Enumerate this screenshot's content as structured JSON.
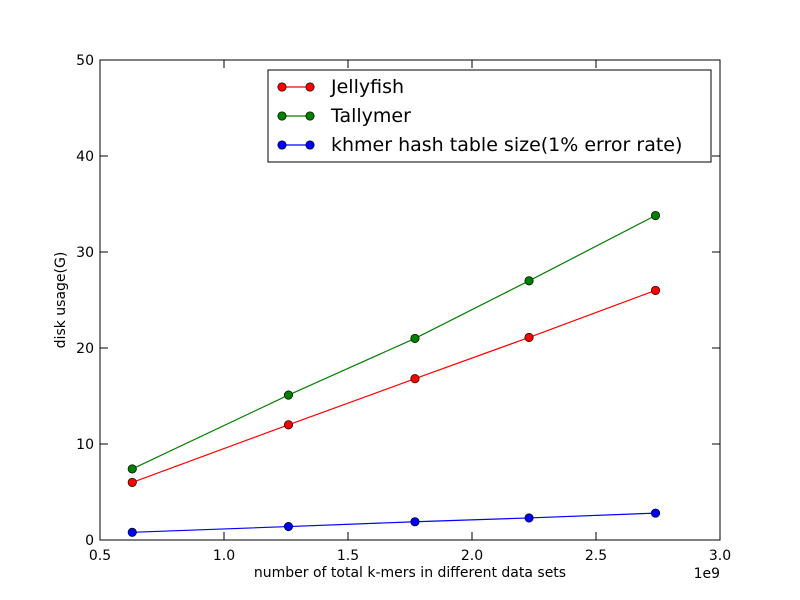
{
  "chart_data": {
    "type": "line",
    "title": "",
    "xlabel": "number of total k-mers in different data sets",
    "ylabel": "disk usage(G)",
    "x_offset_label": "1e9",
    "xlim": [
      0.5,
      3.0
    ],
    "ylim": [
      0,
      50
    ],
    "xticks": [
      0.5,
      1.0,
      1.5,
      2.0,
      2.5,
      3.0
    ],
    "xtick_labels": [
      "0.5",
      "1.0",
      "1.5",
      "2.0",
      "2.5",
      "3.0"
    ],
    "yticks": [
      0,
      10,
      20,
      30,
      40,
      50
    ],
    "ytick_labels": [
      "0",
      "10",
      "20",
      "30",
      "40",
      "50"
    ],
    "grid": false,
    "legend_position": "upper-center",
    "x": [
      0.63,
      1.26,
      1.77,
      2.23,
      2.74
    ],
    "series": [
      {
        "name": "Jellyfish",
        "color": "#ff0000",
        "values": [
          6.0,
          12.0,
          16.8,
          21.1,
          26.0
        ]
      },
      {
        "name": "Tallymer",
        "color": "#008000",
        "values": [
          7.4,
          15.1,
          21.0,
          27.0,
          33.8
        ]
      },
      {
        "name": "khmer hash table size(1% error rate)",
        "color": "#0000ff",
        "values": [
          0.8,
          1.4,
          1.9,
          2.3,
          2.8
        ]
      }
    ]
  }
}
